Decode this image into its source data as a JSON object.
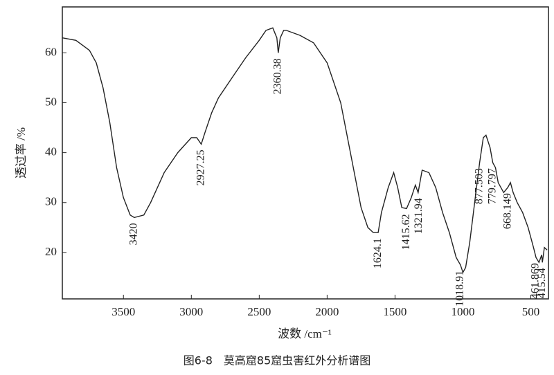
{
  "chart_data": {
    "type": "line",
    "caption": "图6-8　莫高窟85窟虫害红外分析谱图",
    "x_label": "波数 /cm⁻¹",
    "y_label": "透过率 /%",
    "xlim": [
      3950,
      370
    ],
    "ylim": [
      10.7,
      69.2
    ],
    "xticks": [
      3500,
      3000,
      2500,
      2000,
      1500,
      1000,
      500
    ],
    "yticks": [
      20,
      30,
      40,
      50,
      60
    ],
    "color": "#222222",
    "x": [
      3950,
      3850,
      3750,
      3700,
      3650,
      3600,
      3550,
      3500,
      3450,
      3420,
      3350,
      3300,
      3200,
      3100,
      3000,
      2960,
      2927,
      2900,
      2850,
      2800,
      2700,
      2600,
      2500,
      2450,
      2400,
      2370,
      2360,
      2345,
      2320,
      2300,
      2200,
      2100,
      2000,
      1900,
      1850,
      1800,
      1750,
      1700,
      1660,
      1624,
      1600,
      1550,
      1510,
      1480,
      1450,
      1415,
      1380,
      1350,
      1330,
      1300,
      1250,
      1200,
      1150,
      1100,
      1050,
      1018,
      1000,
      980,
      950,
      900,
      877,
      850,
      830,
      800,
      780,
      760,
      740,
      700,
      670,
      650,
      630,
      600,
      560,
      520,
      480,
      462,
      440,
      420,
      415,
      400,
      380
    ],
    "values": [
      63,
      62.5,
      60.5,
      58,
      53,
      46,
      37,
      31,
      27.5,
      27,
      27.5,
      30,
      36,
      40,
      43,
      43,
      41.7,
      44,
      48,
      51,
      55,
      59,
      62.5,
      64.5,
      65,
      63,
      60,
      63,
      64.5,
      64.5,
      63.5,
      62,
      58,
      50,
      43,
      36,
      29,
      25,
      24,
      24,
      28,
      33,
      36,
      33,
      29,
      28.8,
      31,
      33.5,
      32,
      36.5,
      36,
      33,
      28,
      24,
      19,
      17.5,
      16,
      17,
      22,
      33,
      38,
      43,
      43.5,
      41,
      38,
      37,
      34,
      32,
      33,
      34,
      32,
      30,
      28,
      25,
      21,
      19,
      18,
      19.5,
      18,
      21,
      20.5
    ],
    "annotations": [
      {
        "label": "3420",
        "x": 3420,
        "y": 27
      },
      {
        "label": "2927.25",
        "x": 2927,
        "y": 41.7
      },
      {
        "label": "2360.38",
        "x": 2360,
        "y": 60
      },
      {
        "label": "1624.1",
        "x": 1624,
        "y": 24
      },
      {
        "label": "1415.62",
        "x": 1415,
        "y": 28.8
      },
      {
        "label": "1321.94",
        "x": 1321,
        "y": 32
      },
      {
        "label": "1018.91",
        "x": 1018,
        "y": 17.5
      },
      {
        "label": "877.503",
        "x": 877,
        "y": 38
      },
      {
        "label": "779.797",
        "x": 779,
        "y": 38
      },
      {
        "label": "668.149",
        "x": 668,
        "y": 33
      },
      {
        "label": "461.869",
        "x": 462,
        "y": 19
      },
      {
        "label": "415.54",
        "x": 415,
        "y": 18
      }
    ]
  }
}
